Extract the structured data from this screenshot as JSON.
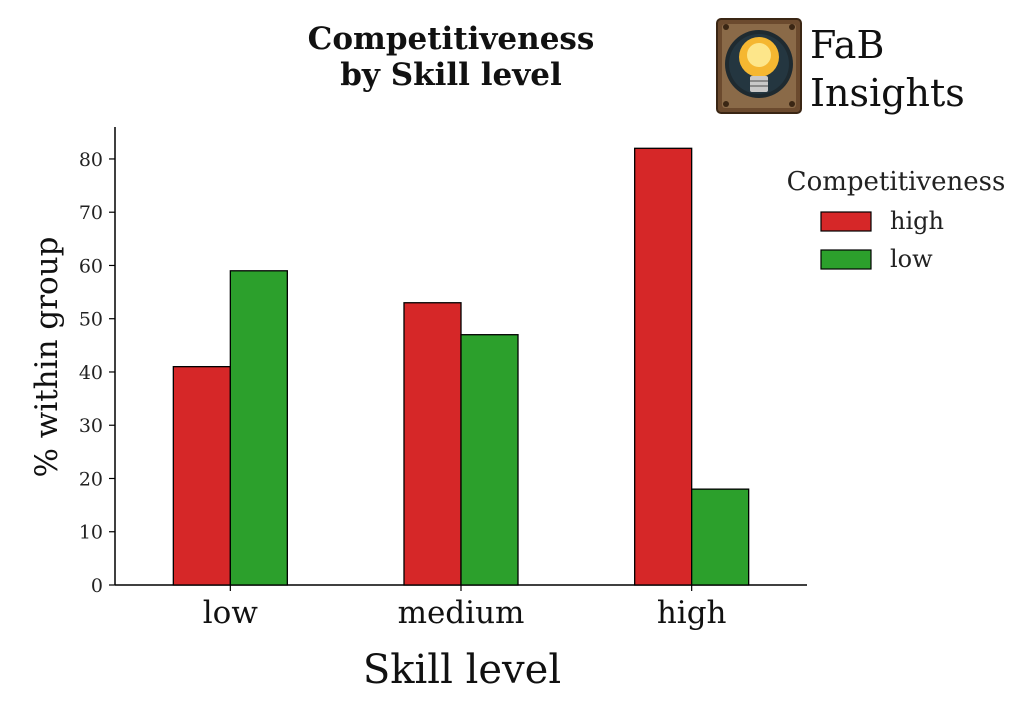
{
  "chart_data": {
    "type": "bar",
    "title": [
      "Competitiveness",
      "by Skill level"
    ],
    "xlabel": "Skill level",
    "ylabel": "% within group",
    "categories": [
      "low",
      "medium",
      "high"
    ],
    "series": [
      {
        "name": "high",
        "values": [
          41,
          53,
          82
        ],
        "color": "#d62728"
      },
      {
        "name": "low",
        "values": [
          59,
          47,
          18
        ],
        "color": "#2ca02c"
      }
    ],
    "ylim": [
      0,
      86
    ],
    "yticks": [
      0,
      10,
      20,
      30,
      40,
      50,
      60,
      70,
      80
    ],
    "legend": {
      "title": "Competitiveness",
      "placement": "right"
    },
    "grid": false
  },
  "logo": {
    "text": [
      "FaB",
      "Insights"
    ],
    "icon": "lightbulb-icon"
  }
}
